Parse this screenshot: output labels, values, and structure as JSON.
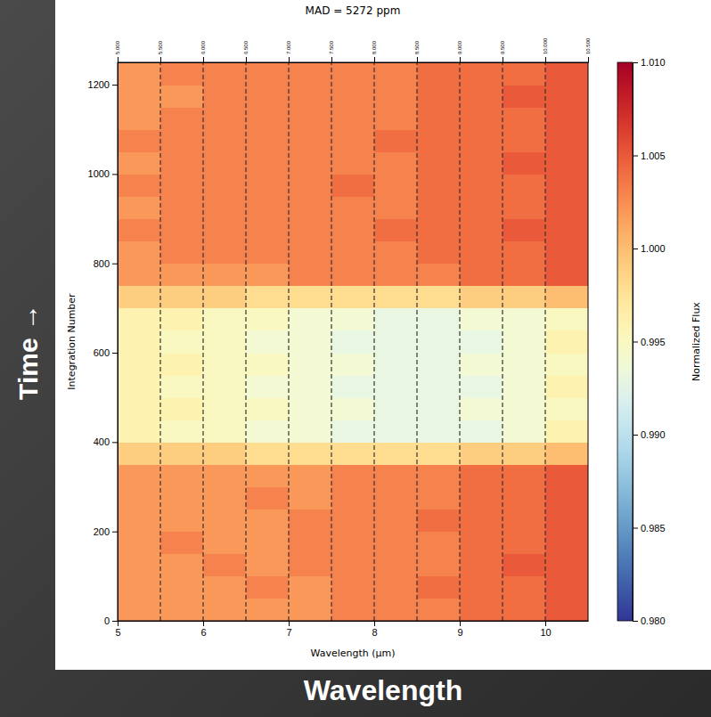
{
  "chart_data": {
    "type": "heatmap",
    "title": "MAD = 5272 ppm",
    "x_label": "Wavelength (μm)",
    "y_label": "Integration Number",
    "xlim": [
      5,
      10.5
    ],
    "ylim": [
      0,
      1250
    ],
    "xticks": [
      5,
      6,
      7,
      8,
      9,
      10
    ],
    "yticks": [
      0,
      200,
      400,
      600,
      800,
      1000,
      1200
    ],
    "x2ticks": [
      {
        "value": 5,
        "label": "5.000"
      },
      {
        "value": 5.5,
        "label": "5.500"
      },
      {
        "value": 6,
        "label": "6.000"
      },
      {
        "value": 6.5,
        "label": "6.500"
      },
      {
        "value": 7,
        "label": "7.000"
      },
      {
        "value": 7.5,
        "label": "7.500"
      },
      {
        "value": 8,
        "label": "8.000"
      },
      {
        "value": 8.5,
        "label": "8.500"
      },
      {
        "value": 9,
        "label": "9.000"
      },
      {
        "value": 9.5,
        "label": "9.500"
      },
      {
        "value": 10,
        "label": "10.000"
      },
      {
        "value": 10.5,
        "label": "10.500"
      }
    ],
    "vlines": [
      5.5,
      6,
      6.5,
      7,
      7.5,
      8,
      8.5,
      9,
      9.5,
      10
    ],
    "x_edges": [
      5,
      5.5,
      6,
      6.5,
      7,
      7.5,
      8,
      8.5,
      9,
      9.5,
      10,
      10.5
    ],
    "y_edges": [
      0,
      50,
      100,
      150,
      200,
      250,
      300,
      350,
      400,
      450,
      500,
      550,
      600,
      650,
      700,
      750,
      800,
      850,
      900,
      950,
      1000,
      1050,
      1100,
      1150,
      1200,
      1250
    ],
    "values": [
      [
        1.002,
        1.002,
        1.002,
        1.002,
        1.002,
        1.003,
        1.003,
        1.003,
        1.004,
        1.004,
        1.005
      ],
      [
        1.002,
        1.002,
        1.002,
        1.003,
        1.002,
        1.003,
        1.003,
        1.004,
        1.004,
        1.004,
        1.005
      ],
      [
        1.002,
        1.002,
        1.003,
        1.002,
        1.003,
        1.003,
        1.003,
        1.003,
        1.004,
        1.005,
        1.005
      ],
      [
        1.002,
        1.003,
        1.002,
        1.002,
        1.003,
        1.003,
        1.003,
        1.003,
        1.004,
        1.004,
        1.005
      ],
      [
        1.002,
        1.002,
        1.002,
        1.002,
        1.003,
        1.003,
        1.003,
        1.004,
        1.004,
        1.004,
        1.005
      ],
      [
        1.002,
        1.002,
        1.002,
        1.003,
        1.002,
        1.003,
        1.003,
        1.003,
        1.004,
        1.004,
        1.005
      ],
      [
        1.002,
        1.002,
        1.002,
        1.002,
        1.002,
        1.003,
        1.003,
        1.003,
        1.004,
        1.004,
        1.005
      ],
      [
        0.999,
        0.999,
        0.999,
        0.998,
        0.998,
        0.998,
        0.998,
        0.998,
        0.999,
        0.999,
        1.0
      ],
      [
        0.996,
        0.995,
        0.995,
        0.994,
        0.994,
        0.993,
        0.993,
        0.993,
        0.993,
        0.994,
        0.996
      ],
      [
        0.996,
        0.996,
        0.995,
        0.995,
        0.994,
        0.994,
        0.993,
        0.993,
        0.994,
        0.994,
        0.995
      ],
      [
        0.996,
        0.995,
        0.995,
        0.994,
        0.994,
        0.993,
        0.993,
        0.993,
        0.993,
        0.994,
        0.996
      ],
      [
        0.996,
        0.996,
        0.995,
        0.995,
        0.994,
        0.994,
        0.993,
        0.993,
        0.994,
        0.994,
        0.995
      ],
      [
        0.996,
        0.995,
        0.995,
        0.994,
        0.994,
        0.993,
        0.993,
        0.993,
        0.993,
        0.994,
        0.996
      ],
      [
        0.996,
        0.996,
        0.995,
        0.995,
        0.994,
        0.994,
        0.993,
        0.993,
        0.994,
        0.994,
        0.995
      ],
      [
        0.999,
        0.999,
        0.999,
        0.998,
        0.998,
        0.998,
        0.998,
        0.998,
        0.999,
        0.999,
        1.0
      ],
      [
        1.002,
        1.002,
        1.002,
        1.002,
        1.003,
        1.003,
        1.003,
        1.003,
        1.004,
        1.004,
        1.005
      ],
      [
        1.002,
        1.003,
        1.003,
        1.003,
        1.003,
        1.003,
        1.003,
        1.004,
        1.004,
        1.004,
        1.005
      ],
      [
        1.003,
        1.003,
        1.003,
        1.003,
        1.003,
        1.003,
        1.004,
        1.004,
        1.004,
        1.005,
        1.005
      ],
      [
        1.002,
        1.003,
        1.003,
        1.003,
        1.003,
        1.003,
        1.003,
        1.004,
        1.004,
        1.004,
        1.005
      ],
      [
        1.003,
        1.003,
        1.003,
        1.003,
        1.003,
        1.004,
        1.003,
        1.004,
        1.004,
        1.004,
        1.005
      ],
      [
        1.002,
        1.003,
        1.003,
        1.003,
        1.003,
        1.003,
        1.003,
        1.004,
        1.004,
        1.005,
        1.005
      ],
      [
        1.003,
        1.003,
        1.003,
        1.003,
        1.003,
        1.003,
        1.004,
        1.004,
        1.004,
        1.004,
        1.005
      ],
      [
        1.002,
        1.003,
        1.003,
        1.003,
        1.003,
        1.003,
        1.003,
        1.004,
        1.004,
        1.004,
        1.005
      ],
      [
        1.002,
        1.002,
        1.003,
        1.003,
        1.003,
        1.003,
        1.003,
        1.004,
        1.004,
        1.005,
        1.005
      ],
      [
        1.002,
        1.003,
        1.003,
        1.003,
        1.003,
        1.003,
        1.003,
        1.004,
        1.004,
        1.004,
        1.005
      ]
    ],
    "colorbar": {
      "range": [
        0.98,
        1.01
      ],
      "ticks": [
        {
          "value": 0.98,
          "label": "0.980"
        },
        {
          "value": 0.985,
          "label": "0.985"
        },
        {
          "value": 0.99,
          "label": "0.990"
        },
        {
          "value": 0.995,
          "label": "0.995"
        },
        {
          "value": 1.0,
          "label": "1.000"
        },
        {
          "value": 1.005,
          "label": "1.005"
        },
        {
          "value": 1.01,
          "label": "1.010"
        }
      ],
      "label": "Normalized Flux"
    },
    "annotations": [
      "Time →",
      "Wavelength"
    ]
  }
}
